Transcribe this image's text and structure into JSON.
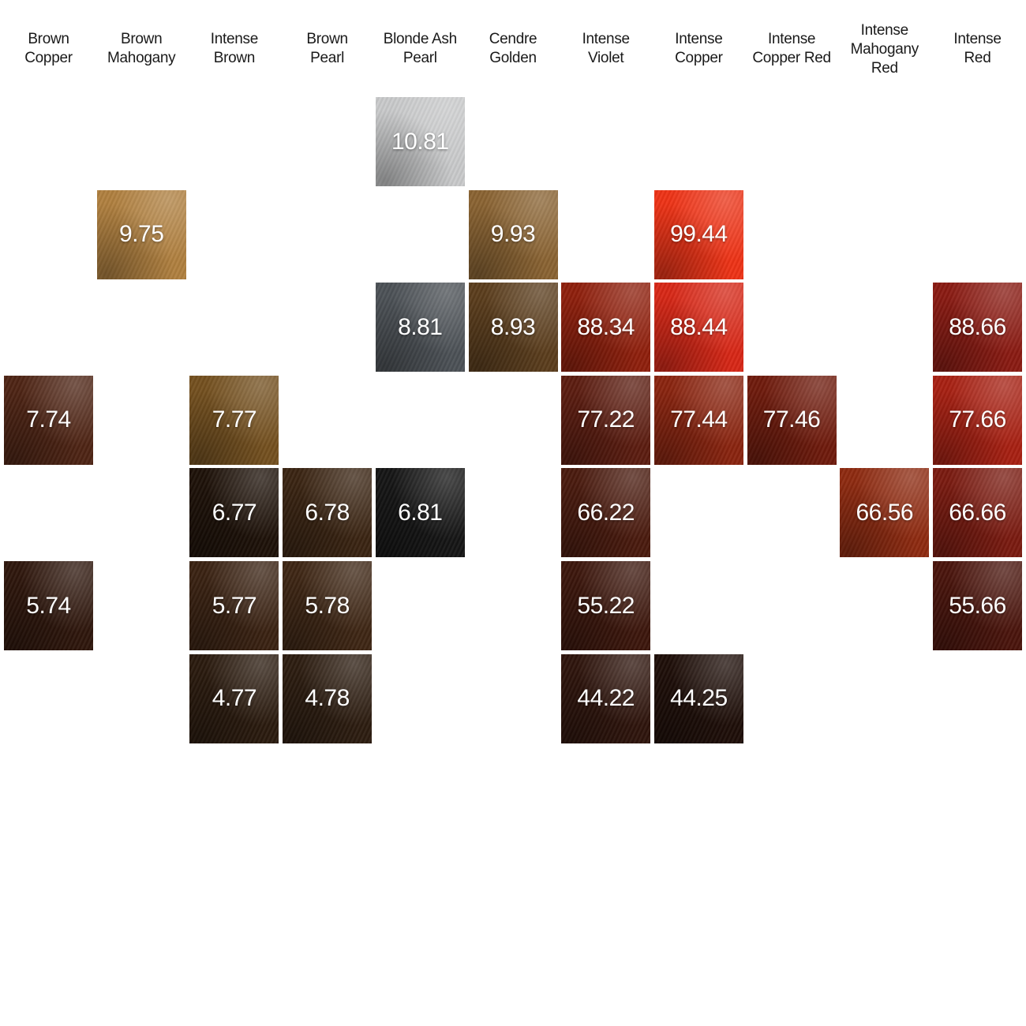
{
  "columns": [
    {
      "header": "Brown\nCopper"
    },
    {
      "header": "Brown\nMahogany"
    },
    {
      "header": "Intense\nBrown"
    },
    {
      "header": "Brown\nPearl"
    },
    {
      "header": "Blonde Ash\nPearl"
    },
    {
      "header": "Cendre\nGolden"
    },
    {
      "header": "Intense\nViolet"
    },
    {
      "header": "Intense\nCopper"
    },
    {
      "header": "Intense\nCopper Red"
    },
    {
      "header": "Intense\nMahogany\nRed"
    },
    {
      "header": "Intense\nRed"
    }
  ],
  "swatches": [
    {
      "code": "10.81",
      "column": 4,
      "level": 10,
      "color": "#c9cacb"
    },
    {
      "code": "9.75",
      "column": 1,
      "level": 9,
      "color": "#b0803f"
    },
    {
      "code": "9.93",
      "column": 5,
      "level": 9,
      "color": "#8a6332"
    },
    {
      "code": "99.44",
      "column": 7,
      "level": 9,
      "color": "#ee3316"
    },
    {
      "code": "8.81",
      "column": 4,
      "level": 8,
      "color": "#4c5156"
    },
    {
      "code": "8.93",
      "column": 5,
      "level": 8,
      "color": "#5b3d1c"
    },
    {
      "code": "88.34",
      "column": 6,
      "level": 8,
      "color": "#8f1f0c"
    },
    {
      "code": "88.44",
      "column": 7,
      "level": 8,
      "color": "#d82716"
    },
    {
      "code": "88.66",
      "column": 10,
      "level": 8,
      "color": "#8a1a12"
    },
    {
      "code": "7.74",
      "column": 0,
      "level": 7,
      "color": "#4e2414"
    },
    {
      "code": "7.77",
      "column": 2,
      "level": 7,
      "color": "#74501f"
    },
    {
      "code": "77.22",
      "column": 6,
      "level": 7,
      "color": "#5c1c10"
    },
    {
      "code": "77.44",
      "column": 7,
      "level": 7,
      "color": "#8a240f"
    },
    {
      "code": "77.46",
      "column": 8,
      "level": 7,
      "color": "#6f1a0c"
    },
    {
      "code": "77.66",
      "column": 10,
      "level": 7,
      "color": "#a82012"
    },
    {
      "code": "6.77",
      "column": 2,
      "level": 6,
      "color": "#1d1108"
    },
    {
      "code": "6.78",
      "column": 3,
      "level": 6,
      "color": "#3a2412"
    },
    {
      "code": "6.81",
      "column": 4,
      "level": 6,
      "color": "#151515"
    },
    {
      "code": "66.22",
      "column": 6,
      "level": 6,
      "color": "#4a1a0e"
    },
    {
      "code": "66.56",
      "column": 9,
      "level": 6,
      "color": "#8e2a10"
    },
    {
      "code": "66.66",
      "column": 10,
      "level": 6,
      "color": "#7a1a10"
    },
    {
      "code": "5.74",
      "column": 0,
      "level": 5,
      "color": "#2e160c"
    },
    {
      "code": "5.77",
      "column": 2,
      "level": 5,
      "color": "#3a2212"
    },
    {
      "code": "5.78",
      "column": 3,
      "level": 5,
      "color": "#3e2614"
    },
    {
      "code": "55.22",
      "column": 6,
      "level": 5,
      "color": "#3c160c"
    },
    {
      "code": "55.66",
      "column": 10,
      "level": 5,
      "color": "#4a140c"
    },
    {
      "code": "4.77",
      "column": 2,
      "level": 4,
      "color": "#2a1a0e"
    },
    {
      "code": "4.78",
      "column": 3,
      "level": 4,
      "color": "#2c1c10"
    },
    {
      "code": "44.22",
      "column": 6,
      "level": 4,
      "color": "#2e140c"
    },
    {
      "code": "44.25",
      "column": 7,
      "level": 4,
      "color": "#1e0e08"
    }
  ]
}
